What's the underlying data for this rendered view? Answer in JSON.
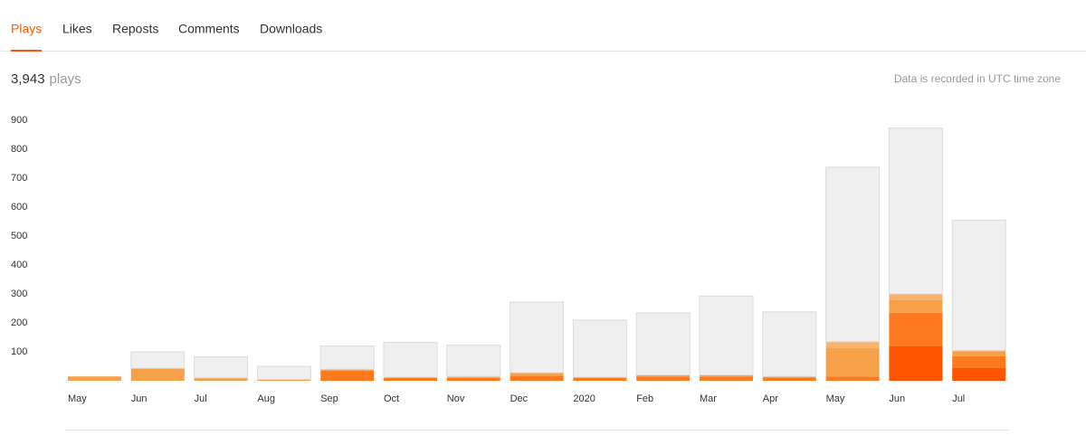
{
  "tabs": [
    "Plays",
    "Likes",
    "Reposts",
    "Comments",
    "Downloads"
  ],
  "summary": {
    "count": "3,943",
    "unit": "plays"
  },
  "note": "Data is recorded in UTC time zone",
  "chart_data": {
    "type": "bar",
    "categories": [
      "May",
      "Jun",
      "Jul",
      "Aug",
      "Sep",
      "Oct",
      "Nov",
      "Dec",
      "2020",
      "Feb",
      "Mar",
      "Apr",
      "May",
      "Jun",
      "Jul"
    ],
    "series": [
      {
        "color": "#ff5500",
        "values": [
          0,
          0,
          0,
          0,
          0,
          0,
          0,
          0,
          0,
          0,
          0,
          0,
          0,
          120,
          45
        ]
      },
      {
        "color": "#ff7a1f",
        "values": [
          0,
          0,
          0,
          0,
          35,
          12,
          10,
          18,
          12,
          15,
          15,
          12,
          15,
          115,
          40
        ]
      },
      {
        "color": "#f7a04a",
        "values": [
          15,
          43,
          10,
          5,
          5,
          0,
          5,
          10,
          0,
          5,
          5,
          3,
          100,
          45,
          15
        ]
      },
      {
        "color": "#f9b36f",
        "values": [
          0,
          0,
          0,
          0,
          0,
          0,
          0,
          0,
          0,
          0,
          0,
          0,
          20,
          20,
          5
        ]
      },
      {
        "color": "#efefef",
        "values": [
          0,
          57,
          73,
          45,
          80,
          121,
          108,
          244,
          198,
          215,
          273,
          223,
          603,
          573,
          450
        ]
      }
    ],
    "ylim": [
      0,
      900
    ],
    "yticks": [
      100,
      200,
      300,
      400,
      500,
      600,
      700,
      800,
      900
    ],
    "grid": false
  }
}
